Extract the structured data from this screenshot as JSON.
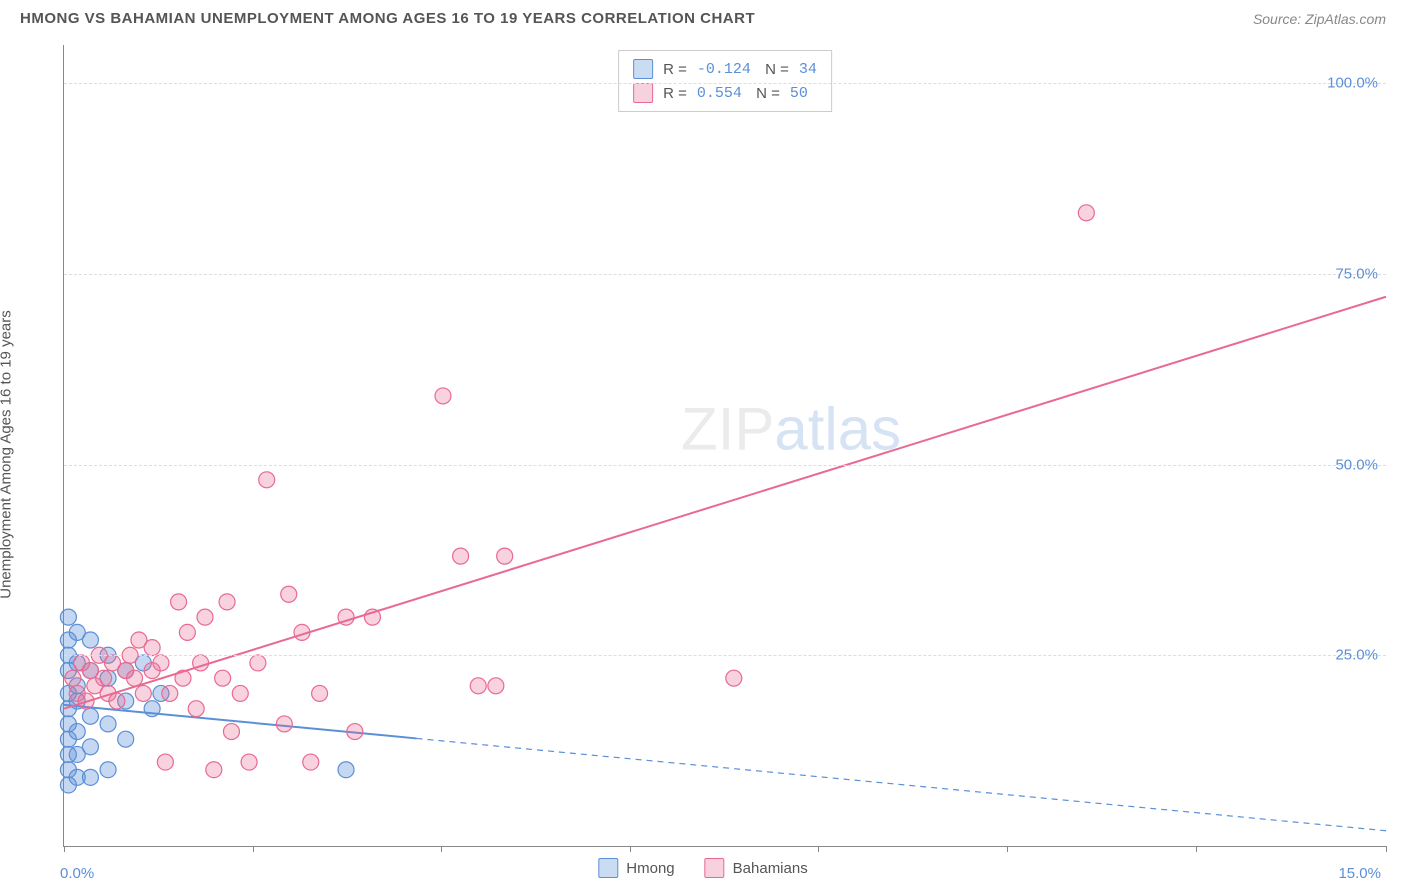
{
  "title": "HMONG VS BAHAMIAN UNEMPLOYMENT AMONG AGES 16 TO 19 YEARS CORRELATION CHART",
  "source": "Source: ZipAtlas.com",
  "y_axis_label": "Unemployment Among Ages 16 to 19 years",
  "watermark_zip": "ZIP",
  "watermark_atlas": "atlas",
  "chart": {
    "type": "scatter",
    "xlim": [
      0,
      15
    ],
    "ylim": [
      0,
      105
    ],
    "x_origin_label": "0.0%",
    "x_max_label": "15.0%",
    "y_ticks": [
      25,
      50,
      75,
      100
    ],
    "y_tick_labels": [
      "25.0%",
      "50.0%",
      "75.0%",
      "100.0%"
    ],
    "x_tick_positions": [
      0,
      2.14,
      4.28,
      6.42,
      8.56,
      10.7,
      12.84,
      15
    ],
    "grid_color": "#dddddd",
    "axis_color": "#888888",
    "label_color": "#5b8fd6",
    "background_color": "#ffffff",
    "marker_radius": 8,
    "marker_stroke_width": 1.2,
    "line_width": 2,
    "series": [
      {
        "name": "Hmong",
        "color_fill": "rgba(91,143,214,0.35)",
        "color_stroke": "#5b8fd6",
        "swatch_fill": "#c9dcf2",
        "swatch_border": "#5b8fd6",
        "R": "-0.124",
        "N": "34",
        "trend_line": {
          "x1": 0,
          "y1": 18.5,
          "x2": 15,
          "y2": 2,
          "solid_until_x": 4.0
        },
        "points": [
          [
            0.05,
            30
          ],
          [
            0.05,
            27
          ],
          [
            0.05,
            25
          ],
          [
            0.05,
            23
          ],
          [
            0.05,
            20
          ],
          [
            0.05,
            18
          ],
          [
            0.05,
            16
          ],
          [
            0.05,
            14
          ],
          [
            0.05,
            12
          ],
          [
            0.05,
            10
          ],
          [
            0.05,
            8
          ],
          [
            0.15,
            28
          ],
          [
            0.15,
            24
          ],
          [
            0.15,
            21
          ],
          [
            0.15,
            19
          ],
          [
            0.15,
            15
          ],
          [
            0.15,
            12
          ],
          [
            0.15,
            9
          ],
          [
            0.3,
            27
          ],
          [
            0.3,
            23
          ],
          [
            0.3,
            17
          ],
          [
            0.3,
            13
          ],
          [
            0.3,
            9
          ],
          [
            0.5,
            25
          ],
          [
            0.5,
            22
          ],
          [
            0.5,
            16
          ],
          [
            0.5,
            10
          ],
          [
            0.7,
            23
          ],
          [
            0.7,
            19
          ],
          [
            0.7,
            14
          ],
          [
            0.9,
            24
          ],
          [
            1.0,
            18
          ],
          [
            1.1,
            20
          ],
          [
            3.2,
            10
          ]
        ]
      },
      {
        "name": "Bahamians",
        "color_fill": "rgba(232,106,146,0.30)",
        "color_stroke": "#e86a92",
        "swatch_fill": "#f7d1dd",
        "swatch_border": "#e86a92",
        "R": "0.554",
        "N": "50",
        "trend_line": {
          "x1": 0,
          "y1": 18,
          "x2": 15,
          "y2": 72,
          "solid_until_x": 15
        },
        "points": [
          [
            0.1,
            22
          ],
          [
            0.15,
            20
          ],
          [
            0.2,
            24
          ],
          [
            0.25,
            19
          ],
          [
            0.3,
            23
          ],
          [
            0.35,
            21
          ],
          [
            0.4,
            25
          ],
          [
            0.45,
            22
          ],
          [
            0.5,
            20
          ],
          [
            0.55,
            24
          ],
          [
            0.6,
            19
          ],
          [
            0.7,
            23
          ],
          [
            0.75,
            25
          ],
          [
            0.8,
            22
          ],
          [
            0.85,
            27
          ],
          [
            0.9,
            20
          ],
          [
            1.0,
            23
          ],
          [
            1.0,
            26
          ],
          [
            1.1,
            24
          ],
          [
            1.15,
            11
          ],
          [
            1.2,
            20
          ],
          [
            1.3,
            32
          ],
          [
            1.35,
            22
          ],
          [
            1.4,
            28
          ],
          [
            1.5,
            18
          ],
          [
            1.55,
            24
          ],
          [
            1.6,
            30
          ],
          [
            1.7,
            10
          ],
          [
            1.8,
            22
          ],
          [
            1.85,
            32
          ],
          [
            1.9,
            15
          ],
          [
            2.0,
            20
          ],
          [
            2.1,
            11
          ],
          [
            2.2,
            24
          ],
          [
            2.3,
            48
          ],
          [
            2.5,
            16
          ],
          [
            2.55,
            33
          ],
          [
            2.7,
            28
          ],
          [
            2.8,
            11
          ],
          [
            2.9,
            20
          ],
          [
            3.2,
            30
          ],
          [
            3.3,
            15
          ],
          [
            3.5,
            30
          ],
          [
            4.3,
            59
          ],
          [
            4.5,
            38
          ],
          [
            4.7,
            21
          ],
          [
            4.9,
            21
          ],
          [
            5.0,
            38
          ],
          [
            7.6,
            22
          ],
          [
            11.6,
            83
          ]
        ]
      }
    ]
  },
  "legend_bottom": [
    {
      "label": "Hmong",
      "swatch_fill": "#c9dcf2",
      "swatch_border": "#5b8fd6"
    },
    {
      "label": "Bahamians",
      "swatch_fill": "#f7d1dd",
      "swatch_border": "#e86a92"
    }
  ]
}
